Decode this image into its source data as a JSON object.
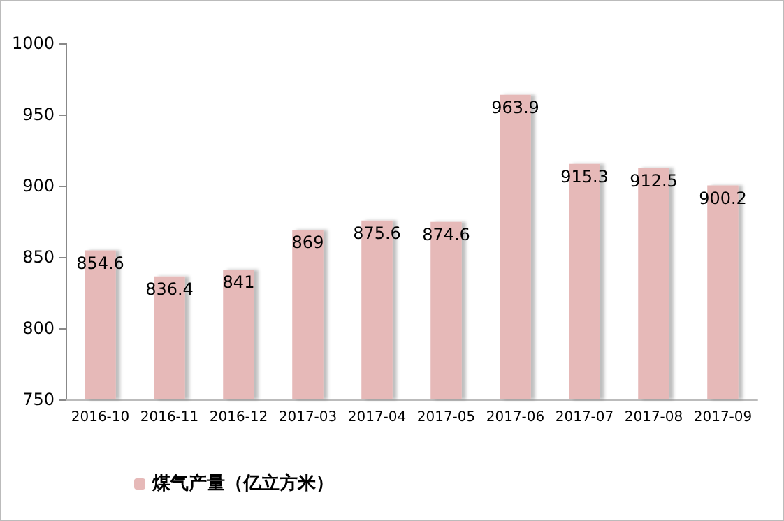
{
  "chart_data": {
    "type": "bar",
    "categories": [
      "2016-10",
      "2016-11",
      "2016-12",
      "2017-03",
      "2017-04",
      "2017-05",
      "2017-06",
      "2017-07",
      "2017-08",
      "2017-09"
    ],
    "series": [
      {
        "name": "煤气产量（亿立方米）",
        "color": "#e6b9b8",
        "values": [
          854.6,
          836.4,
          841,
          869,
          875.6,
          874.6,
          963.9,
          915.3,
          912.5,
          900.2
        ]
      }
    ],
    "ylim": [
      750,
      1000
    ],
    "yticks": [
      750,
      800,
      850,
      900,
      950,
      1000
    ],
    "grid": false,
    "legend": "bottom left",
    "data_labels": true
  }
}
